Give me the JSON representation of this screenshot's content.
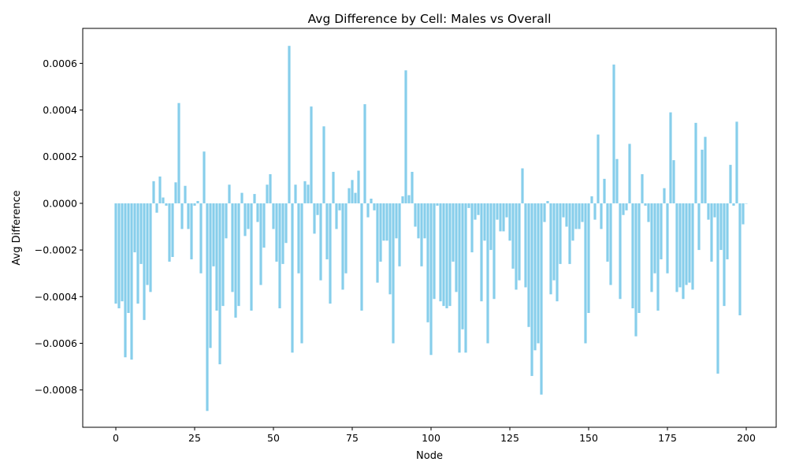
{
  "chart_data": {
    "type": "bar",
    "title": "Avg Difference by Cell: Males vs Overall",
    "xlabel": "Node",
    "ylabel": "Avg Difference",
    "bar_color": "#87CEEB",
    "xlim": [
      -10.5,
      209.5
    ],
    "ylim": [
      -0.00096,
      0.00075
    ],
    "xticks": [
      0,
      25,
      50,
      75,
      100,
      125,
      150,
      175,
      200
    ],
    "yticks": [
      -0.0008,
      -0.0006,
      -0.0004,
      -0.0002,
      0.0,
      0.0002,
      0.0004,
      0.0006
    ],
    "ytick_labels": [
      "−0.0008",
      "−0.0006",
      "−0.0004",
      "−0.0002",
      "0.0000",
      "0.0002",
      "0.0004",
      "0.0006"
    ],
    "x": [
      0,
      1,
      2,
      3,
      4,
      5,
      6,
      7,
      8,
      9,
      10,
      11,
      12,
      13,
      14,
      15,
      16,
      17,
      18,
      19,
      20,
      21,
      22,
      23,
      24,
      25,
      26,
      27,
      28,
      29,
      30,
      31,
      32,
      33,
      34,
      35,
      36,
      37,
      38,
      39,
      40,
      41,
      42,
      43,
      44,
      45,
      46,
      47,
      48,
      49,
      50,
      51,
      52,
      53,
      54,
      55,
      56,
      57,
      58,
      59,
      60,
      61,
      62,
      63,
      64,
      65,
      66,
      67,
      68,
      69,
      70,
      71,
      72,
      73,
      74,
      75,
      76,
      77,
      78,
      79,
      80,
      81,
      82,
      83,
      84,
      85,
      86,
      87,
      88,
      89,
      90,
      91,
      92,
      93,
      94,
      95,
      96,
      97,
      98,
      99,
      100,
      101,
      102,
      103,
      104,
      105,
      106,
      107,
      108,
      109,
      110,
      111,
      112,
      113,
      114,
      115,
      116,
      117,
      118,
      119,
      120,
      121,
      122,
      123,
      124,
      125,
      126,
      127,
      128,
      129,
      130,
      131,
      132,
      133,
      134,
      135,
      136,
      137,
      138,
      139,
      140,
      141,
      142,
      143,
      144,
      145,
      146,
      147,
      148,
      149,
      150,
      151,
      152,
      153,
      154,
      155,
      156,
      157,
      158,
      159,
      160,
      161,
      162,
      163,
      164,
      165,
      166,
      167,
      168,
      169,
      170,
      171,
      172,
      173,
      174,
      175,
      176,
      177,
      178,
      179,
      180,
      181,
      182,
      183,
      184,
      185,
      186,
      187,
      188,
      189,
      190,
      191,
      192,
      193,
      194,
      195,
      196,
      197,
      198,
      199,
      200
    ],
    "values": [
      -0.00043,
      -0.00045,
      -0.00042,
      -0.00066,
      -0.00047,
      -0.00067,
      -0.00021,
      -0.00043,
      -0.00026,
      -0.0005,
      -0.00035,
      -0.00038,
      9.5e-05,
      -4e-05,
      0.000115,
      2.5e-05,
      -1e-05,
      -0.00025,
      -0.00023,
      9e-05,
      0.00043,
      -0.00011,
      7.5e-05,
      -0.00011,
      -0.00024,
      -1e-05,
      1e-05,
      -0.0003,
      0.000222,
      -0.00089,
      -0.00062,
      -0.00027,
      -0.00046,
      -0.00069,
      -0.00044,
      -0.00015,
      8e-05,
      -0.00038,
      -0.00049,
      -0.00044,
      4.5e-05,
      -0.00014,
      -0.00011,
      -0.00046,
      4e-05,
      -8e-05,
      -0.00035,
      -0.00019,
      8e-05,
      0.000125,
      -0.00011,
      -0.00025,
      -0.00045,
      -0.00026,
      -0.00017,
      0.000675,
      -0.00064,
      8e-05,
      -0.0003,
      -0.0006,
      9.5e-05,
      8e-05,
      0.000415,
      -0.00013,
      -5e-05,
      -0.00033,
      0.00033,
      -0.00024,
      -0.00043,
      0.000135,
      -0.00011,
      -3e-05,
      -0.00037,
      -0.0003,
      6.5e-05,
      0.0001,
      4.5e-05,
      0.00014,
      -0.00046,
      0.000425,
      -6e-05,
      2e-05,
      -3e-05,
      -0.00034,
      -0.00025,
      -0.00016,
      -0.00016,
      -0.00039,
      -0.0006,
      -0.00015,
      -0.00027,
      3e-05,
      0.00057,
      3.5e-05,
      0.000135,
      -0.0001,
      -0.00015,
      -0.00027,
      -0.00015,
      -0.00051,
      -0.00065,
      -0.00041,
      -1e-05,
      -0.00042,
      -0.00044,
      -0.00045,
      -0.00044,
      -0.00025,
      -0.00038,
      -0.00064,
      -0.00054,
      -0.00064,
      -2e-05,
      -0.00021,
      -7e-05,
      -5e-05,
      -0.00042,
      -0.00016,
      -0.0006,
      -0.0002,
      -0.00041,
      -7e-05,
      -0.00012,
      -0.00012,
      -6e-05,
      -0.00016,
      -0.00028,
      -0.00037,
      -0.00033,
      0.00015,
      -0.00036,
      -0.00053,
      -0.00074,
      -0.00063,
      -0.0006,
      -0.00082,
      -8e-05,
      1e-05,
      -0.00039,
      -0.00033,
      -0.00042,
      -0.00026,
      -6e-05,
      -0.0001,
      -0.00026,
      -0.00016,
      -0.00011,
      -0.00011,
      -8e-05,
      -0.0006,
      -0.00047,
      3e-05,
      -7e-05,
      0.000295,
      -0.00011,
      0.000105,
      -0.00025,
      -0.00035,
      0.000595,
      0.00019,
      -0.00041,
      -5e-05,
      -3e-05,
      0.000255,
      -0.00045,
      -0.00057,
      -0.00047,
      0.000125,
      -1e-05,
      -8e-05,
      -0.00038,
      -0.0003,
      -0.00046,
      -0.00024,
      6.5e-05,
      -0.0003,
      0.00039,
      0.000185,
      -0.00038,
      -0.00036,
      -0.00041,
      -0.00035,
      -0.00034,
      -0.00037,
      0.000345,
      -0.0002,
      0.00023,
      0.000285,
      -7e-05,
      -0.00025,
      -6e-05,
      -0.00073,
      -0.0002,
      -0.00044,
      -0.00024,
      0.000165,
      -1e-05,
      0.00035,
      -0.00048,
      -9e-05,
      0.0
    ]
  }
}
